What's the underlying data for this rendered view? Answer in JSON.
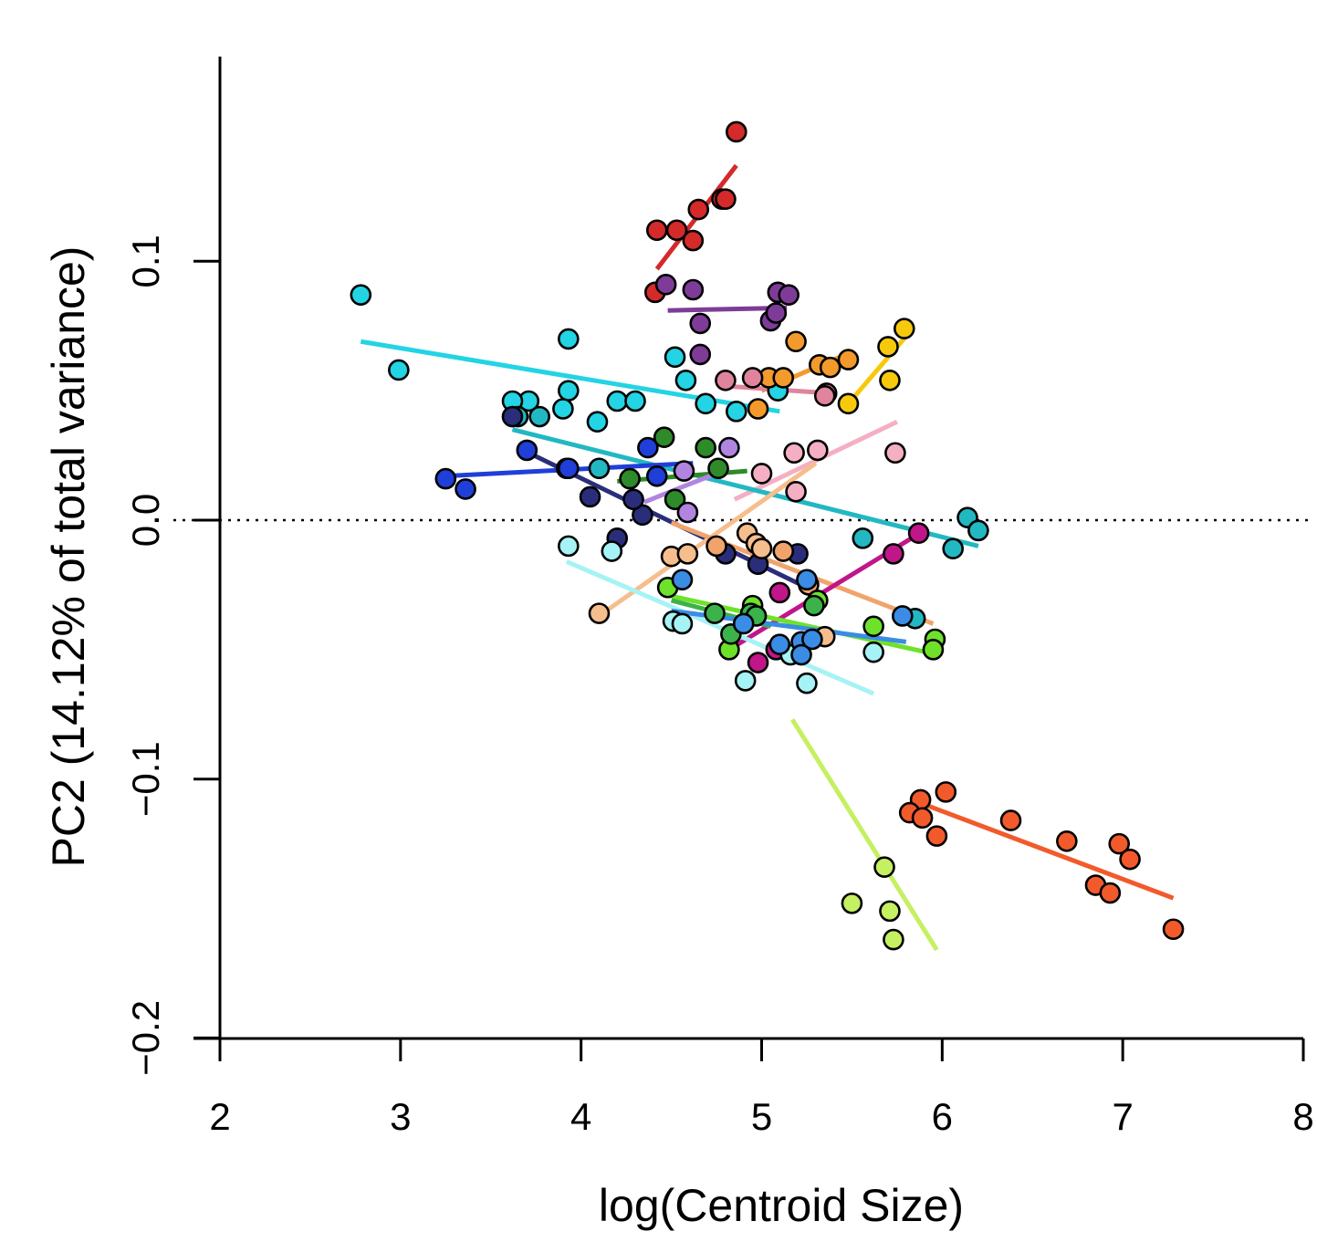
{
  "chart_data": {
    "type": "scatter",
    "title": "",
    "xlabel": "log(Centroid Size)",
    "ylabel": "PC2 (14.12% of total variance)",
    "xlim": [
      2,
      8
    ],
    "ylim": [
      -0.2,
      0.18
    ],
    "xticks": [
      "2",
      "3",
      "4",
      "5",
      "6",
      "7",
      "8"
    ],
    "yticks": [
      "−0.2",
      "−0.1",
      "0.0",
      "0.1"
    ],
    "reference_line": {
      "y": 0.0,
      "style": "dotted"
    },
    "series": [
      {
        "name": "red",
        "color": "#d42a2a",
        "line": [
          [
            4.42,
            0.097
          ],
          [
            4.86,
            0.137
          ]
        ],
        "points": [
          [
            4.86,
            0.15
          ],
          [
            4.42,
            0.112
          ],
          [
            4.53,
            0.112
          ],
          [
            4.62,
            0.108
          ],
          [
            4.65,
            0.12
          ],
          [
            4.78,
            0.124
          ],
          [
            4.8,
            0.124
          ],
          [
            4.41,
            0.088
          ]
        ]
      },
      {
        "name": "purple",
        "color": "#7e3c98",
        "line": [
          [
            4.48,
            0.081
          ],
          [
            5.14,
            0.082
          ]
        ],
        "points": [
          [
            4.47,
            0.091
          ],
          [
            4.62,
            0.089
          ],
          [
            4.66,
            0.076
          ],
          [
            4.66,
            0.064
          ],
          [
            5.09,
            0.088
          ],
          [
            5.15,
            0.087
          ],
          [
            5.05,
            0.077
          ],
          [
            5.08,
            0.08
          ]
        ]
      },
      {
        "name": "cyan",
        "color": "#22d4e4",
        "line": [
          [
            2.78,
            0.069
          ],
          [
            5.1,
            0.042
          ]
        ],
        "points": [
          [
            2.78,
            0.087
          ],
          [
            2.99,
            0.058
          ],
          [
            3.93,
            0.07
          ],
          [
            3.93,
            0.05
          ],
          [
            3.9,
            0.043
          ],
          [
            3.71,
            0.046
          ],
          [
            3.62,
            0.046
          ],
          [
            4.09,
            0.038
          ],
          [
            4.2,
            0.046
          ],
          [
            4.3,
            0.046
          ],
          [
            4.52,
            0.063
          ],
          [
            4.58,
            0.054
          ],
          [
            4.69,
            0.045
          ],
          [
            4.86,
            0.042
          ],
          [
            5.09,
            0.05
          ]
        ]
      },
      {
        "name": "orange",
        "color": "#f39a2c",
        "line": [
          [
            5.0,
            0.05
          ],
          [
            5.5,
            0.065
          ]
        ],
        "points": [
          [
            5.19,
            0.069
          ],
          [
            5.04,
            0.055
          ],
          [
            5.12,
            0.055
          ],
          [
            5.32,
            0.06
          ],
          [
            5.38,
            0.059
          ],
          [
            5.48,
            0.062
          ],
          [
            4.98,
            0.043
          ]
        ]
      },
      {
        "name": "yellow",
        "color": "#f7c90d",
        "line": [
          [
            5.48,
            0.045
          ],
          [
            5.8,
            0.071
          ]
        ],
        "points": [
          [
            5.79,
            0.074
          ],
          [
            5.7,
            0.067
          ],
          [
            5.71,
            0.054
          ],
          [
            5.48,
            0.045
          ]
        ]
      },
      {
        "name": "pink",
        "color": "#e0849e",
        "line": [
          [
            4.76,
            0.052
          ],
          [
            5.38,
            0.049
          ]
        ],
        "points": [
          [
            4.8,
            0.054
          ],
          [
            4.95,
            0.055
          ],
          [
            5.36,
            0.049
          ],
          [
            5.35,
            0.048
          ]
        ]
      },
      {
        "name": "light-pink",
        "color": "#f4afc3",
        "line": [
          [
            4.85,
            0.008
          ],
          [
            5.75,
            0.038
          ]
        ],
        "points": [
          [
            5.0,
            0.018
          ],
          [
            5.18,
            0.026
          ],
          [
            5.31,
            0.027
          ],
          [
            5.74,
            0.026
          ],
          [
            5.19,
            0.011
          ]
        ]
      },
      {
        "name": "teal",
        "color": "#22b8c2",
        "line": [
          [
            3.62,
            0.035
          ],
          [
            6.2,
            -0.01
          ]
        ],
        "points": [
          [
            3.65,
            0.04
          ],
          [
            3.77,
            0.04
          ],
          [
            4.1,
            0.02
          ],
          [
            5.56,
            -0.007
          ],
          [
            6.14,
            0.001
          ],
          [
            6.2,
            -0.004
          ],
          [
            6.06,
            -0.011
          ],
          [
            5.85,
            -0.038
          ]
        ]
      },
      {
        "name": "navy",
        "color": "#2a2e7a",
        "line": [
          [
            3.68,
            0.027
          ],
          [
            5.22,
            -0.025
          ]
        ],
        "points": [
          [
            3.62,
            0.04
          ],
          [
            3.92,
            0.02
          ],
          [
            4.05,
            0.009
          ],
          [
            4.2,
            -0.007
          ],
          [
            4.34,
            0.002
          ],
          [
            4.29,
            0.008
          ],
          [
            4.8,
            -0.013
          ],
          [
            4.98,
            -0.017
          ],
          [
            5.2,
            -0.013
          ]
        ]
      },
      {
        "name": "blue",
        "color": "#1f3fd8",
        "line": [
          [
            3.24,
            0.017
          ],
          [
            4.62,
            0.022
          ]
        ],
        "points": [
          [
            3.25,
            0.016
          ],
          [
            3.36,
            0.012
          ],
          [
            3.7,
            0.027
          ],
          [
            4.37,
            0.028
          ],
          [
            4.42,
            0.017
          ],
          [
            3.93,
            0.02
          ]
        ]
      },
      {
        "name": "dark-green",
        "color": "#2f8a2a",
        "line": [
          [
            4.2,
            0.015
          ],
          [
            4.92,
            0.019
          ]
        ],
        "points": [
          [
            4.46,
            0.032
          ],
          [
            4.69,
            0.028
          ],
          [
            4.76,
            0.02
          ],
          [
            4.27,
            0.016
          ],
          [
            4.52,
            0.008
          ]
        ]
      },
      {
        "name": "lavender",
        "color": "#b184e0",
        "line": [
          [
            4.35,
            0.007
          ],
          [
            4.82,
            0.02
          ]
        ],
        "points": [
          [
            4.82,
            0.028
          ],
          [
            4.59,
            0.003
          ],
          [
            4.57,
            0.019
          ]
        ]
      },
      {
        "name": "peach",
        "color": "#f6be8c",
        "line": [
          [
            4.12,
            -0.036
          ],
          [
            5.3,
            0.022
          ]
        ],
        "points": [
          [
            4.1,
            -0.036
          ],
          [
            4.5,
            -0.014
          ],
          [
            4.59,
            -0.013
          ],
          [
            4.92,
            -0.005
          ],
          [
            4.97,
            -0.009
          ],
          [
            5.0,
            -0.011
          ],
          [
            5.35,
            -0.045
          ]
        ]
      },
      {
        "name": "salmon",
        "color": "#f0a46c",
        "line": [
          [
            4.5,
            -0.001
          ],
          [
            5.95,
            -0.04
          ]
        ],
        "points": [
          [
            4.75,
            -0.01
          ],
          [
            5.12,
            -0.012
          ],
          [
            5.26,
            -0.025
          ]
        ]
      },
      {
        "name": "magenta",
        "color": "#c0168a",
        "line": [
          [
            4.82,
            -0.05
          ],
          [
            5.9,
            -0.004
          ]
        ],
        "points": [
          [
            5.87,
            -0.005
          ],
          [
            5.73,
            -0.013
          ],
          [
            5.1,
            -0.028
          ],
          [
            4.98,
            -0.055
          ],
          [
            5.08,
            -0.05
          ]
        ]
      },
      {
        "name": "light-cyan",
        "color": "#a6f3f6",
        "line": [
          [
            3.92,
            -0.016
          ],
          [
            5.62,
            -0.067
          ]
        ],
        "points": [
          [
            3.93,
            -0.01
          ],
          [
            4.17,
            -0.012
          ],
          [
            4.51,
            -0.039
          ],
          [
            4.56,
            -0.04
          ],
          [
            5.62,
            -0.051
          ],
          [
            4.91,
            -0.062
          ],
          [
            5.25,
            -0.063
          ],
          [
            5.16,
            -0.052
          ]
        ]
      },
      {
        "name": "lime",
        "color": "#6ee22a",
        "line": [
          [
            4.48,
            -0.029
          ],
          [
            5.98,
            -0.052
          ]
        ],
        "points": [
          [
            4.48,
            -0.026
          ],
          [
            4.95,
            -0.033
          ],
          [
            5.31,
            -0.031
          ],
          [
            5.62,
            -0.041
          ],
          [
            5.96,
            -0.046
          ],
          [
            5.95,
            -0.05
          ],
          [
            4.82,
            -0.05
          ]
        ]
      },
      {
        "name": "green",
        "color": "#3cb24a",
        "line": [
          [
            4.5,
            -0.031
          ],
          [
            5.05,
            -0.041
          ]
        ],
        "points": [
          [
            4.74,
            -0.036
          ],
          [
            4.94,
            -0.036
          ],
          [
            4.97,
            -0.037
          ],
          [
            5.29,
            -0.033
          ],
          [
            4.83,
            -0.044
          ]
        ]
      },
      {
        "name": "sky-blue",
        "color": "#3a8ce4",
        "line": [
          [
            4.5,
            -0.035
          ],
          [
            5.8,
            -0.047
          ]
        ],
        "points": [
          [
            4.56,
            -0.023
          ],
          [
            5.25,
            -0.023
          ],
          [
            4.9,
            -0.04
          ],
          [
            5.1,
            -0.048
          ],
          [
            5.22,
            -0.047
          ],
          [
            5.28,
            -0.046
          ],
          [
            5.22,
            -0.052
          ],
          [
            5.78,
            -0.037
          ]
        ]
      },
      {
        "name": "yellow-green",
        "color": "#c4f061",
        "line": [
          [
            5.17,
            -0.077
          ],
          [
            5.97,
            -0.166
          ]
        ],
        "points": [
          [
            5.68,
            -0.134
          ],
          [
            5.5,
            -0.148
          ],
          [
            5.71,
            -0.151
          ],
          [
            5.73,
            -0.162
          ]
        ]
      },
      {
        "name": "orange-red",
        "color": "#f25a2c",
        "line": [
          [
            5.87,
            -0.109
          ],
          [
            7.28,
            -0.146
          ]
        ],
        "points": [
          [
            6.02,
            -0.105
          ],
          [
            5.88,
            -0.108
          ],
          [
            5.82,
            -0.113
          ],
          [
            5.89,
            -0.115
          ],
          [
            5.97,
            -0.122
          ],
          [
            6.38,
            -0.116
          ],
          [
            6.69,
            -0.124
          ],
          [
            6.98,
            -0.125
          ],
          [
            7.04,
            -0.131
          ],
          [
            6.85,
            -0.141
          ],
          [
            6.93,
            -0.144
          ],
          [
            7.28,
            -0.158
          ]
        ]
      }
    ]
  }
}
